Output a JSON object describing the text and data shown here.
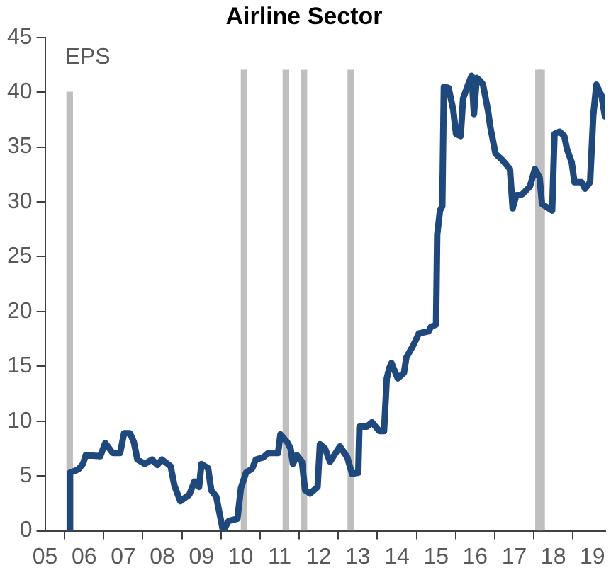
{
  "chart_data": {
    "type": "line",
    "title": "Airline Sector",
    "ylabel": "EPS",
    "xlim": [
      2005,
      2019.33
    ],
    "xticks": [
      {
        "value": 2005,
        "label": "05"
      },
      {
        "value": 2006,
        "label": "06"
      },
      {
        "value": 2007,
        "label": "07"
      },
      {
        "value": 2008,
        "label": "08"
      },
      {
        "value": 2009,
        "label": "09"
      },
      {
        "value": 2010,
        "label": "10"
      },
      {
        "value": 2011,
        "label": "11"
      },
      {
        "value": 2012,
        "label": "12"
      },
      {
        "value": 2013,
        "label": "13"
      },
      {
        "value": 2014,
        "label": "14"
      },
      {
        "value": 2015,
        "label": "15"
      },
      {
        "value": 2016,
        "label": "16"
      },
      {
        "value": 2017,
        "label": "17"
      },
      {
        "value": 2018,
        "label": "18"
      },
      {
        "value": 2019,
        "label": "19"
      }
    ],
    "ylim": [
      0,
      45
    ],
    "yticks": [
      0,
      5,
      10,
      15,
      20,
      25,
      30,
      35,
      40,
      45
    ],
    "grid": false,
    "legend": false,
    "marker": "none",
    "line_style": "solid",
    "series": [
      {
        "type": "bar",
        "color": "#bfbfbf",
        "x": [
          2005.63,
          2010.09,
          2011.16,
          2011.62,
          2012.82,
          2017.62,
          2017.7
        ],
        "values": [
          40,
          42,
          42,
          42,
          42,
          42,
          42
        ]
      },
      {
        "color": "#1f497d",
        "x": [
          2005.63,
          2005.64,
          2005.85,
          2005.97,
          2006.04,
          2006.41,
          2006.54,
          2006.73,
          2006.92,
          2007.02,
          2007.17,
          2007.27,
          2007.36,
          2007.55,
          2007.74,
          2007.87,
          2007.99,
          2008.21,
          2008.31,
          2008.46,
          2008.69,
          2008.82,
          2008.94,
          2009.0,
          2009.17,
          2009.25,
          2009.38,
          2009.55,
          2009.7,
          2009.92,
          2010.01,
          2010.14,
          2010.3,
          2010.39,
          2010.58,
          2010.71,
          2010.96,
          2011.02,
          2011.19,
          2011.28,
          2011.34,
          2011.44,
          2011.57,
          2011.65,
          2011.78,
          2011.97,
          2012.03,
          2012.16,
          2012.29,
          2012.54,
          2012.73,
          2012.85,
          2013.01,
          2013.04,
          2013.23,
          2013.36,
          2013.55,
          2013.67,
          2013.74,
          2013.8,
          2013.86,
          2014.02,
          2014.18,
          2014.24,
          2014.43,
          2014.56,
          2014.81,
          2014.87,
          2015.0,
          2015.03,
          2015.1,
          2015.16,
          2015.2,
          2015.32,
          2015.44,
          2015.51,
          2015.63,
          2015.69,
          2015.82,
          2015.91,
          2015.97,
          2016.04,
          2016.14,
          2016.2,
          2016.33,
          2016.39,
          2016.52,
          2016.7,
          2016.89,
          2016.96,
          2017.05,
          2017.21,
          2017.4,
          2017.53,
          2017.65,
          2017.71,
          2017.97,
          2018.03,
          2018.16,
          2018.28,
          2018.35,
          2018.47,
          2018.54,
          2018.72,
          2018.81,
          2018.94,
          2019.02,
          2019.1,
          2019.23,
          2019.32
        ],
        "values": [
          0,
          5.3,
          5.6,
          6.1,
          6.9,
          6.8,
          8.0,
          7.1,
          7.1,
          8.9,
          8.9,
          8.1,
          6.5,
          6.1,
          6.5,
          6.0,
          6.5,
          5.9,
          4.1,
          2.7,
          3.3,
          4.5,
          4.0,
          6.1,
          5.7,
          3.7,
          3.1,
          0,
          0.9,
          1.1,
          3.9,
          5.3,
          5.7,
          6.5,
          6.7,
          7.1,
          7.1,
          8.8,
          8.1,
          7.5,
          6.1,
          6.9,
          6.3,
          3.7,
          3.4,
          4.0,
          7.9,
          7.5,
          6.3,
          7.7,
          6.7,
          5.2,
          5.3,
          9.5,
          9.5,
          9.9,
          9.1,
          9.1,
          13.9,
          14.8,
          15.3,
          13.9,
          14.4,
          15.8,
          17.0,
          18.0,
          18.2,
          18.6,
          18.8,
          27.0,
          29.2,
          29.6,
          40.5,
          40.4,
          38.4,
          36.2,
          36.0,
          39.4,
          40.7,
          41.5,
          38.0,
          41.3,
          41.0,
          40.7,
          38.3,
          36.8,
          34.4,
          33.8,
          33.0,
          29.4,
          30.6,
          30.7,
          31.4,
          33.0,
          32.2,
          29.8,
          29.2,
          36.2,
          36.4,
          36.0,
          34.8,
          33.6,
          31.8,
          31.8,
          31.2,
          31.8,
          37.8,
          40.7,
          39.7,
          37.8
        ]
      }
    ]
  }
}
